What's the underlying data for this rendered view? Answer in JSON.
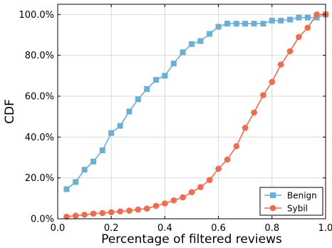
{
  "chart_data": {
    "type": "line",
    "title": "",
    "xlabel": "Percentage of filtered reviews",
    "ylabel": "CDF",
    "xlim": [
      0.0,
      1.0
    ],
    "ylim": [
      0.0,
      1.05
    ],
    "grid": true,
    "legend_position": "bottom-right",
    "x_ticks": [
      {
        "value": 0.0,
        "label": "0.0"
      },
      {
        "value": 0.2,
        "label": "0.2"
      },
      {
        "value": 0.4,
        "label": "0.4"
      },
      {
        "value": 0.6,
        "label": "0.6"
      },
      {
        "value": 0.8,
        "label": "0.8"
      },
      {
        "value": 1.0,
        "label": "1.0"
      }
    ],
    "y_ticks": [
      {
        "value": 0.0,
        "label": "0.0%"
      },
      {
        "value": 0.2,
        "label": "20.0%"
      },
      {
        "value": 0.4,
        "label": "40.0%"
      },
      {
        "value": 0.6,
        "label": "60.0%"
      },
      {
        "value": 0.8,
        "label": "80.0%"
      },
      {
        "value": 1.0,
        "label": "100.0%"
      }
    ],
    "series": [
      {
        "name": "Benign",
        "color": "#6baed6",
        "marker": "square",
        "x": [
          0.033,
          0.067,
          0.1,
          0.133,
          0.167,
          0.2,
          0.233,
          0.267,
          0.3,
          0.333,
          0.367,
          0.4,
          0.433,
          0.467,
          0.5,
          0.533,
          0.567,
          0.6,
          0.633,
          0.667,
          0.7,
          0.733,
          0.767,
          0.8,
          0.833,
          0.867,
          0.9,
          0.933,
          0.967,
          1.0
        ],
        "y": [
          0.145,
          0.18,
          0.24,
          0.28,
          0.335,
          0.42,
          0.455,
          0.525,
          0.585,
          0.635,
          0.68,
          0.7,
          0.76,
          0.815,
          0.855,
          0.87,
          0.905,
          0.94,
          0.955,
          0.955,
          0.955,
          0.955,
          0.955,
          0.97,
          0.97,
          0.975,
          0.985,
          0.985,
          0.985,
          1.0
        ]
      },
      {
        "name": "Sybil",
        "color": "#ef6c4f",
        "marker": "circle",
        "x": [
          0.033,
          0.067,
          0.1,
          0.133,
          0.167,
          0.2,
          0.233,
          0.267,
          0.3,
          0.333,
          0.367,
          0.4,
          0.433,
          0.467,
          0.5,
          0.533,
          0.567,
          0.6,
          0.633,
          0.667,
          0.7,
          0.733,
          0.767,
          0.8,
          0.833,
          0.867,
          0.9,
          0.933,
          0.967,
          1.0
        ],
        "y": [
          0.01,
          0.015,
          0.02,
          0.025,
          0.028,
          0.032,
          0.036,
          0.04,
          0.045,
          0.05,
          0.063,
          0.075,
          0.09,
          0.105,
          0.13,
          0.155,
          0.19,
          0.245,
          0.29,
          0.355,
          0.445,
          0.52,
          0.605,
          0.67,
          0.755,
          0.82,
          0.89,
          0.935,
          1.0,
          1.0
        ]
      }
    ]
  }
}
